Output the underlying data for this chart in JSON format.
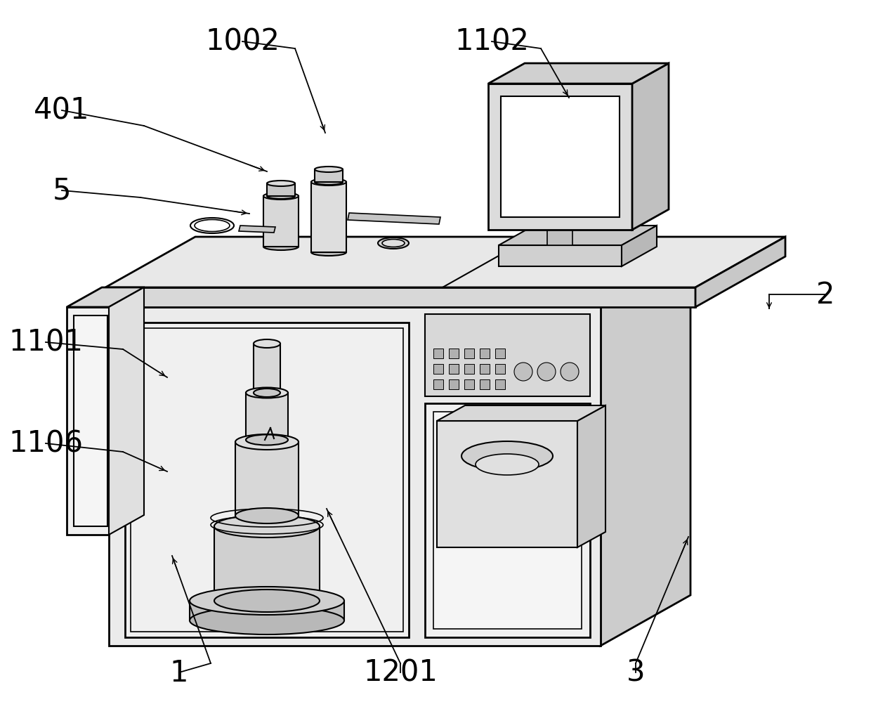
{
  "bg": "#ffffff",
  "lc": "#000000",
  "fc_front": "#efefef",
  "fc_right": "#d8d8d8",
  "fc_top": "#e4e4e4",
  "fc_inner": "#f5f5f5",
  "fc_dark": "#c8c8c8",
  "lw_main": 2.0,
  "lw_inner": 1.5,
  "lw_thin": 1.2,
  "lw_ann": 1.3,
  "label_fs": 30,
  "labels": {
    "401": [
      88,
      862,
      205,
      840,
      380,
      775
    ],
    "1002": [
      345,
      960,
      420,
      950,
      463,
      830
    ],
    "1102": [
      700,
      960,
      770,
      950,
      810,
      880
    ],
    "5": [
      88,
      748,
      200,
      738,
      355,
      715
    ],
    "2": [
      1175,
      600,
      1095,
      600,
      1095,
      580
    ],
    "1101": [
      65,
      532,
      175,
      522,
      238,
      482
    ],
    "1106": [
      65,
      388,
      175,
      376,
      238,
      348
    ],
    "1": [
      255,
      62,
      300,
      75,
      245,
      228
    ],
    "1201": [
      570,
      62,
      570,
      75,
      465,
      295
    ],
    "3": [
      905,
      62,
      905,
      75,
      980,
      255
    ]
  }
}
